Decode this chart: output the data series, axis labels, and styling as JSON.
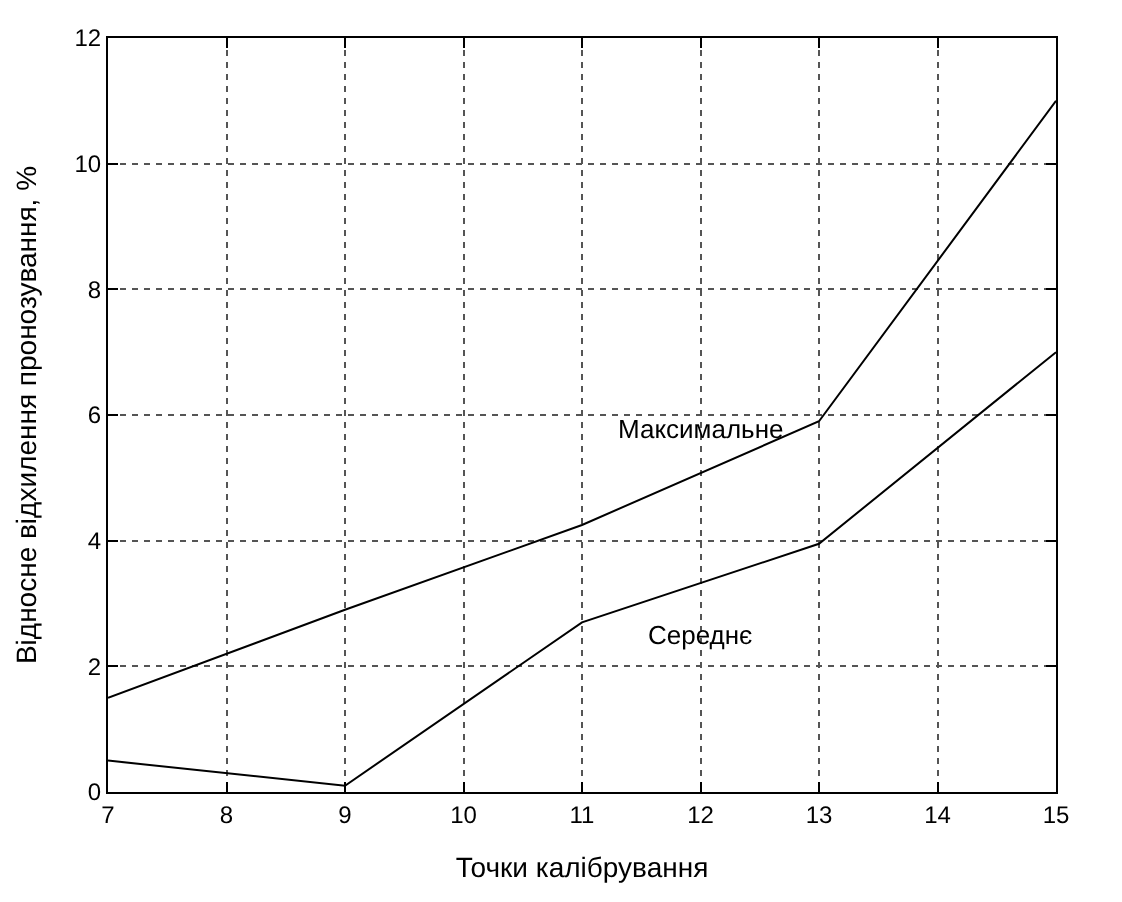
{
  "chart_data": {
    "type": "line",
    "xlabel": "Точки калібрування",
    "ylabel": "Відносне відхилення пронозування, %",
    "x": [
      7,
      9,
      11,
      13,
      15
    ],
    "series": [
      {
        "name": "Максимальне",
        "color": "#000000",
        "values": [
          1.5,
          2.9,
          4.25,
          5.9,
          11
        ]
      },
      {
        "name": "Середнє",
        "color": "#000000",
        "values": [
          0.5,
          0.1,
          2.7,
          3.95,
          7
        ]
      }
    ],
    "xlim": [
      7,
      15
    ],
    "xticks": [
      7,
      8,
      9,
      10,
      11,
      12,
      13,
      14,
      15
    ],
    "ylim": [
      0,
      12
    ],
    "yticks": [
      0,
      2,
      4,
      6,
      8,
      10,
      12
    ],
    "grid": true,
    "legend": false,
    "marker": "none",
    "line_style": "solid"
  }
}
